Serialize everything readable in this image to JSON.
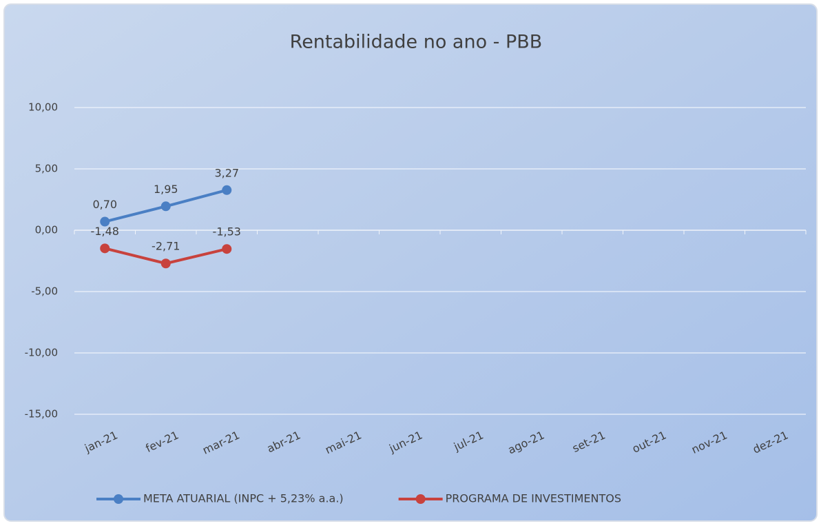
{
  "chart_data": {
    "type": "line",
    "title": "Rentabilidade no ano - PBB",
    "categories": [
      "jan-21",
      "fev-21",
      "mar-21",
      "abr-21",
      "mai-21",
      "jun-21",
      "jul-21",
      "ago-21",
      "set-21",
      "out-21",
      "nov-21",
      "dez-21"
    ],
    "series": [
      {
        "name": "META ATUARIAL (INPC + 5,23% a.a.)",
        "color": "#4a7fc4",
        "values": [
          0.7,
          1.95,
          3.27,
          null,
          null,
          null,
          null,
          null,
          null,
          null,
          null,
          null
        ],
        "value_labels": [
          "0,70",
          "1,95",
          "3,27",
          null,
          null,
          null,
          null,
          null,
          null,
          null,
          null,
          null
        ]
      },
      {
        "name": "PROGRAMA DE INVESTIMENTOS",
        "color": "#c8423d",
        "values": [
          -1.48,
          -2.71,
          -1.53,
          null,
          null,
          null,
          null,
          null,
          null,
          null,
          null,
          null
        ],
        "value_labels": [
          "-1,48",
          "-2,71",
          "-1,53",
          null,
          null,
          null,
          null,
          null,
          null,
          null,
          null,
          null
        ]
      }
    ],
    "ylim": [
      -15,
      10
    ],
    "yticks": [
      {
        "value": -15,
        "label": "-15,00"
      },
      {
        "value": -10,
        "label": "-10,00"
      },
      {
        "value": -5,
        "label": "-5,00"
      },
      {
        "value": 0,
        "label": "0,00"
      },
      {
        "value": 5,
        "label": "5,00"
      },
      {
        "value": 10,
        "label": "10,00"
      }
    ],
    "grid": true,
    "legend": "bottom"
  }
}
